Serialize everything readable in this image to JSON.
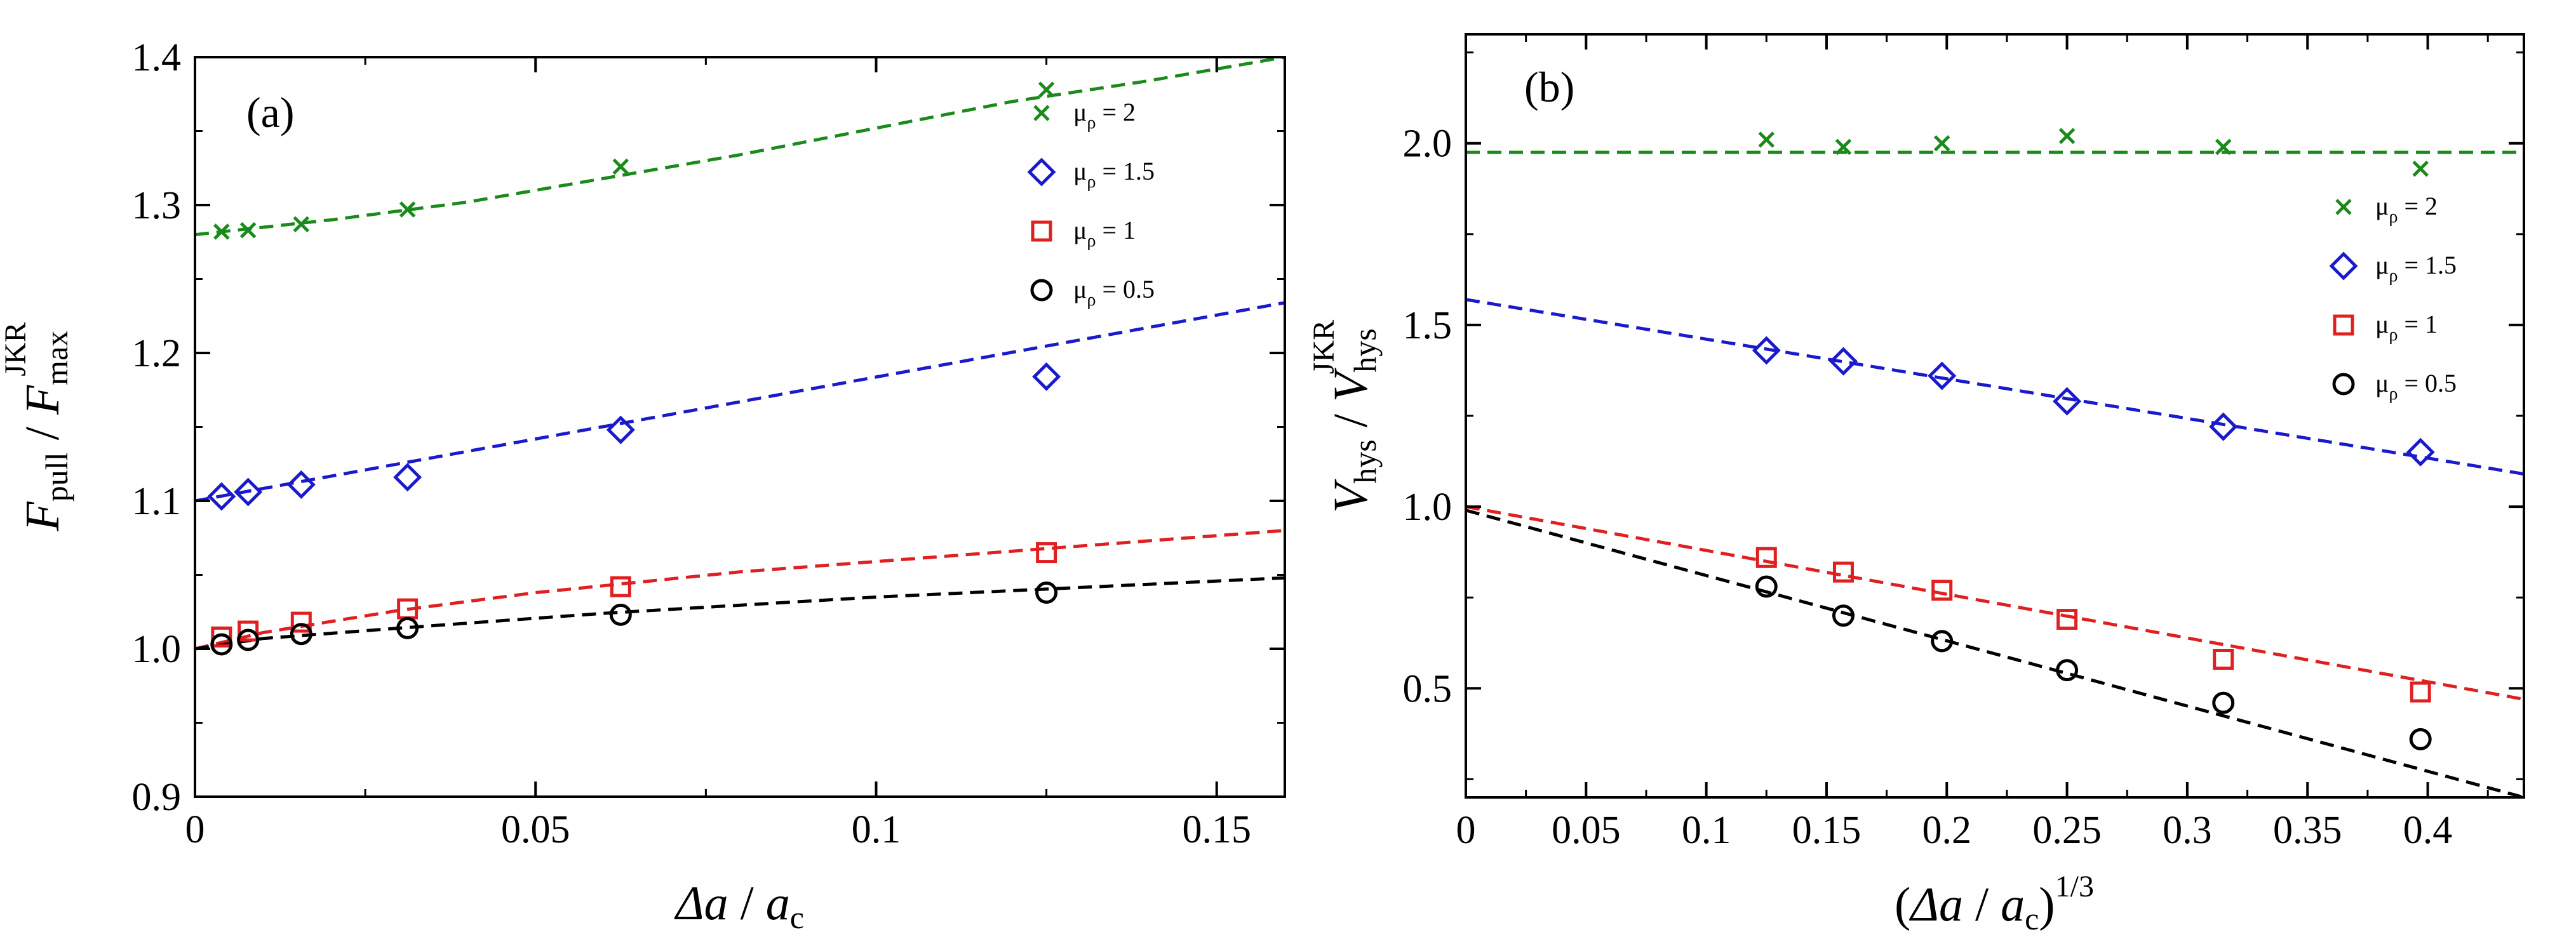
{
  "chart_data": [
    {
      "type": "scatter",
      "panel_label": "(a)",
      "xlabel": {
        "symbol": "Δa",
        "sep": " / ",
        "main": "a",
        "sub": "c"
      },
      "ylabel": {
        "main": "F",
        "sub": "pull",
        "sep": " / ",
        "main2": "F",
        "sub2": "max",
        "sup2": "JKR"
      },
      "xlim": [
        0,
        0.16
      ],
      "ylim": [
        0.9,
        1.4
      ],
      "xticks": [
        0,
        0.05,
        0.1,
        0.15
      ],
      "xtick_labels": [
        "0",
        "0.05",
        "0.1",
        "0.15"
      ],
      "yticks": [
        0.9,
        1.0,
        1.1,
        1.2,
        1.3,
        1.4
      ],
      "ytick_labels": [
        "0.9",
        "1.0",
        "1.1",
        "1.2",
        "1.3",
        "1.4"
      ],
      "legend_position": "top-right",
      "series": [
        {
          "name": "μρ = 2",
          "legend": {
            "mu": "μ",
            "sub": "ρ",
            "rest": " = 2"
          },
          "marker": "cross",
          "color": "#1a8a1a",
          "x": [
            0.0039,
            0.0078,
            0.0156,
            0.0312,
            0.0625,
            0.125
          ],
          "y": [
            1.282,
            1.283,
            1.287,
            1.297,
            1.326,
            1.378
          ],
          "fit": [
            [
              0,
              1.28
            ],
            [
              0.02,
              1.29
            ],
            [
              0.04,
              1.302
            ],
            [
              0.06,
              1.318
            ],
            [
              0.08,
              1.334
            ],
            [
              0.1,
              1.352
            ],
            [
              0.12,
              1.37
            ],
            [
              0.14,
              1.384
            ],
            [
              0.16,
              1.4
            ]
          ]
        },
        {
          "name": "μρ = 1.5",
          "legend": {
            "mu": "μ",
            "sub": "ρ",
            "rest": " = 1.5"
          },
          "marker": "diamond",
          "color": "#1a1acc",
          "x": [
            0.0039,
            0.0078,
            0.0156,
            0.0312,
            0.0625,
            0.125
          ],
          "y": [
            1.103,
            1.106,
            1.111,
            1.116,
            1.148,
            1.184
          ],
          "fit": [
            [
              0,
              1.1
            ],
            [
              0.16,
              1.234
            ]
          ]
        },
        {
          "name": "μρ = 1",
          "legend": {
            "mu": "μ",
            "sub": "ρ",
            "rest": " = 1"
          },
          "marker": "square",
          "color": "#e02020",
          "x": [
            0.0039,
            0.0078,
            0.0156,
            0.0312,
            0.0625,
            0.125
          ],
          "y": [
            1.008,
            1.012,
            1.018,
            1.027,
            1.042,
            1.065
          ],
          "fit": [
            [
              0,
              1.0
            ],
            [
              0.01,
              1.011
            ],
            [
              0.03,
              1.026
            ],
            [
              0.05,
              1.038
            ],
            [
              0.08,
              1.052
            ],
            [
              0.12,
              1.066
            ],
            [
              0.16,
              1.08
            ]
          ]
        },
        {
          "name": "μρ = 0.5",
          "legend": {
            "mu": "μ",
            "sub": "ρ",
            "rest": " = 0.5"
          },
          "marker": "circle",
          "color": "#000000",
          "x": [
            0.0039,
            0.0078,
            0.0156,
            0.0312,
            0.0625,
            0.125
          ],
          "y": [
            1.003,
            1.006,
            1.01,
            1.014,
            1.023,
            1.038
          ],
          "fit": [
            [
              0,
              1.0
            ],
            [
              0.01,
              1.007
            ],
            [
              0.03,
              1.014
            ],
            [
              0.06,
              1.024
            ],
            [
              0.1,
              1.035
            ],
            [
              0.16,
              1.048
            ]
          ]
        }
      ]
    },
    {
      "type": "scatter",
      "panel_label": "(b)",
      "xlabel": {
        "open": "(",
        "symbol": "Δa",
        "sep": " / ",
        "main": "a",
        "sub": "c",
        "close": ")",
        "sup": "1/3"
      },
      "ylabel": {
        "main": "V",
        "sub": "hys",
        "sep": " / ",
        "main2": "V",
        "sub2": "hys",
        "sup2": "JKR"
      },
      "xlim": [
        0,
        0.44
      ],
      "ylim": [
        0.2,
        2.3
      ],
      "xticks": [
        0,
        0.05,
        0.1,
        0.15,
        0.2,
        0.25,
        0.3,
        0.35,
        0.4
      ],
      "xtick_labels": [
        "0",
        "0.05",
        "0.1",
        "0.15",
        "0.2",
        "0.25",
        "0.3",
        "0.35",
        "0.4"
      ],
      "yticks": [
        0.5,
        1.0,
        1.5,
        2.0
      ],
      "ytick_labels": [
        "0.5",
        "1.0",
        "1.5",
        "2.0"
      ],
      "legend_position": "right",
      "series": [
        {
          "name": "μρ = 2",
          "legend": {
            "mu": "μ",
            "sub": "ρ",
            "rest": " = 2"
          },
          "marker": "cross",
          "color": "#1a8a1a",
          "x": [
            0.125,
            0.157,
            0.198,
            0.25,
            0.315,
            0.397
          ],
          "y": [
            2.01,
            1.99,
            2.0,
            2.02,
            1.99,
            1.93
          ],
          "fit": [
            [
              0,
              1.975
            ],
            [
              0.44,
              1.975
            ]
          ]
        },
        {
          "name": "μρ = 1.5",
          "legend": {
            "mu": "μ",
            "sub": "ρ",
            "rest": " = 1.5"
          },
          "marker": "diamond",
          "color": "#1a1acc",
          "x": [
            0.125,
            0.157,
            0.198,
            0.25,
            0.315,
            0.397
          ],
          "y": [
            1.43,
            1.4,
            1.36,
            1.29,
            1.22,
            1.15
          ],
          "fit": [
            [
              0,
              1.57
            ],
            [
              0.44,
              1.09
            ]
          ]
        },
        {
          "name": "μρ = 1",
          "legend": {
            "mu": "μ",
            "sub": "ρ",
            "rest": " = 1"
          },
          "marker": "square",
          "color": "#e02020",
          "x": [
            0.125,
            0.157,
            0.198,
            0.25,
            0.315,
            0.397
          ],
          "y": [
            0.86,
            0.82,
            0.77,
            0.69,
            0.58,
            0.49
          ],
          "fit": [
            [
              0,
              1.0
            ],
            [
              0.44,
              0.47
            ]
          ]
        },
        {
          "name": "μρ = 0.5",
          "legend": {
            "mu": "μ",
            "sub": "ρ",
            "rest": " = 0.5"
          },
          "marker": "circle",
          "color": "#000000",
          "x": [
            0.125,
            0.157,
            0.198,
            0.25,
            0.315,
            0.397
          ],
          "y": [
            0.78,
            0.7,
            0.63,
            0.55,
            0.46,
            0.36
          ],
          "fit": [
            [
              0,
              0.99
            ],
            [
              0.44,
              0.2
            ]
          ]
        }
      ]
    }
  ]
}
